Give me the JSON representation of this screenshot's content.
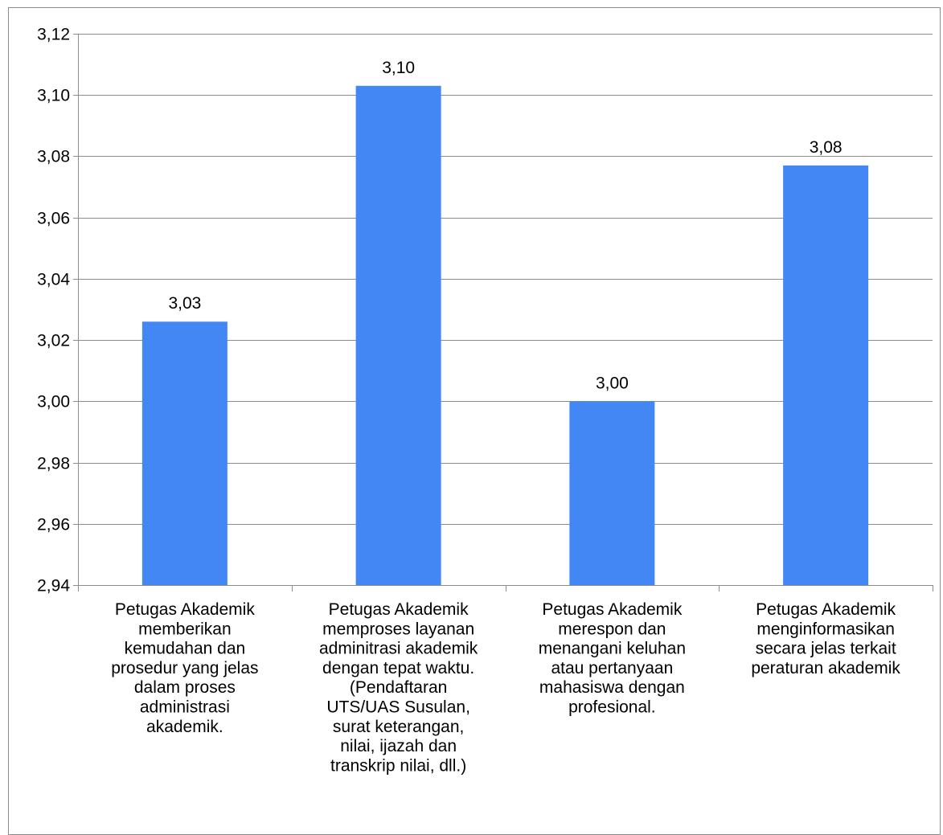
{
  "chart_data": {
    "type": "bar",
    "categories": [
      [
        "Petugas Akademik",
        "memberikan",
        "kemudahan dan",
        "prosedur yang jelas",
        "dalam proses",
        "administrasi",
        "akademik."
      ],
      [
        "Petugas Akademik",
        "memproses layanan",
        "adminitrasi akademik",
        "dengan tepat waktu.",
        "(Pendaftaran",
        "UTS/UAS Susulan,",
        "surat keterangan,",
        "nilai, ijazah dan",
        "transkrip nilai, dll.)"
      ],
      [
        "Petugas Akademik",
        "merespon dan",
        "menangani keluhan",
        "atau pertanyaan",
        "mahasiswa dengan",
        "profesional."
      ],
      [
        "Petugas Akademik",
        "menginformasikan",
        "secara jelas terkait",
        "peraturan akademik"
      ]
    ],
    "values": [
      3.026,
      3.103,
      3.0,
      3.077
    ],
    "data_labels": [
      "3,03",
      "3,10",
      "3,00",
      "3,08"
    ],
    "yticks": [
      "2,94",
      "2,96",
      "2,98",
      "3,00",
      "3,02",
      "3,04",
      "3,06",
      "3,08",
      "3,10",
      "3,12"
    ],
    "ylim": [
      2.94,
      3.12
    ],
    "grid": true,
    "bar_color": "#4387f5",
    "grid_color": "#8c8c8c",
    "title": "",
    "xlabel": "",
    "ylabel": ""
  }
}
